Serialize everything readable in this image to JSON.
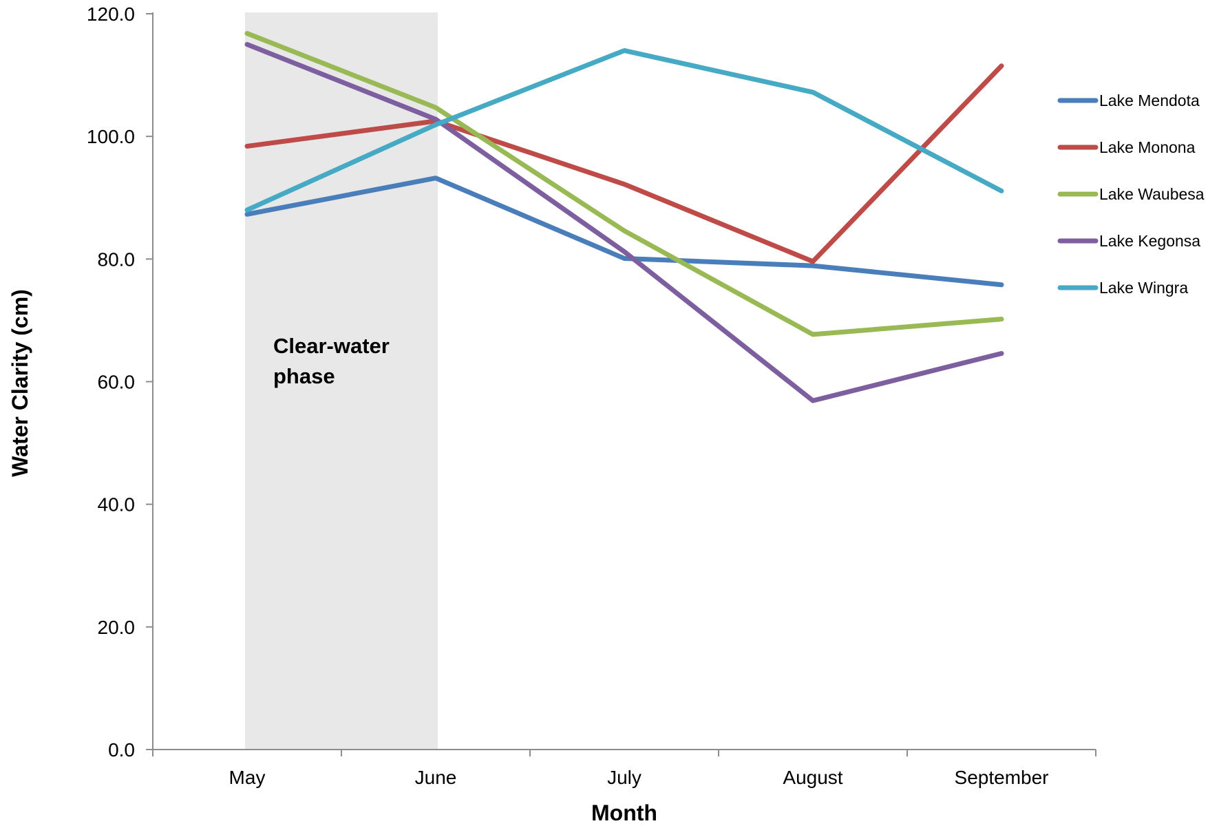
{
  "chart_data": {
    "type": "line",
    "categories": [
      "May",
      "June",
      "July",
      "August",
      "September"
    ],
    "series": [
      {
        "name": "Lake Mendota",
        "color": "#4A7EBB",
        "values": [
          87.3,
          93.2,
          80.1,
          78.9,
          75.8
        ]
      },
      {
        "name": "Lake Monona",
        "color": "#BE4B48",
        "values": [
          98.4,
          102.5,
          92.2,
          79.6,
          111.5
        ]
      },
      {
        "name": "Lake Waubesa",
        "color": "#98B954",
        "values": [
          116.8,
          104.7,
          84.6,
          67.7,
          70.2
        ]
      },
      {
        "name": "Lake Kegonsa",
        "color": "#7D5FA0",
        "values": [
          115.0,
          102.8,
          81.2,
          56.9,
          64.6
        ]
      },
      {
        "name": "Lake Wingra",
        "color": "#46AAC5",
        "values": [
          88.0,
          101.9,
          114.0,
          107.2,
          91.1
        ]
      }
    ],
    "xlabel": "Month",
    "ylabel": "Water Clarity (cm)",
    "ylim": [
      0,
      120
    ],
    "y_ticks": [
      "0.0",
      "20.0",
      "40.0",
      "60.0",
      "80.0",
      "100.0",
      "120.0"
    ],
    "grid": false,
    "legend_position": "right",
    "shaded_region": {
      "from": "May",
      "to": "June",
      "color": "#E6E6E6"
    },
    "annotation": [
      "Clear-water",
      "phase"
    ]
  }
}
